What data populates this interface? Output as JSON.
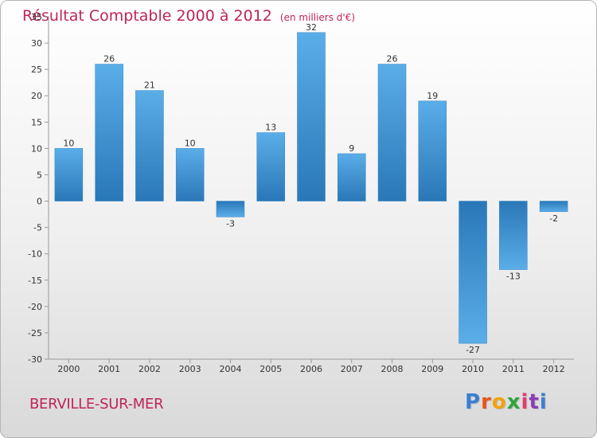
{
  "header": {
    "title": "Résultat Comptable 2000 à 2012",
    "subtitle": "(en milliers d'€)"
  },
  "footer": {
    "commune": "BERVILLE-SUR-MER"
  },
  "logo": {
    "letters": [
      "P",
      "r",
      "o",
      "x",
      "i",
      "t",
      "i"
    ],
    "colors": [
      "#3c7fd1",
      "#e8541b",
      "#f2a20a",
      "#2fa43c",
      "#e23b6e",
      "#8a3fb3",
      "#3c7fd1"
    ]
  },
  "chart_data": {
    "type": "bar",
    "title": "Résultat Comptable 2000 à 2012",
    "ylabel": "(en milliers d'€)",
    "xlabel": "",
    "categories": [
      "2000",
      "2001",
      "2002",
      "2003",
      "2004",
      "2005",
      "2006",
      "2007",
      "2008",
      "2009",
      "2010",
      "2011",
      "2012"
    ],
    "values": [
      10,
      26,
      21,
      10,
      -3,
      13,
      32,
      9,
      26,
      19,
      -27,
      -13,
      -2
    ],
    "labels": [
      "10",
      "26",
      "21",
      "10",
      "-3",
      "13",
      "32",
      "9",
      "26",
      "19",
      "-27",
      "-13",
      "-2"
    ],
    "ylim": [
      -30,
      35
    ],
    "yticks": [
      35,
      30,
      25,
      20,
      15,
      10,
      5,
      0,
      -5,
      -10,
      -15,
      -20,
      -25,
      -30
    ],
    "grid": false,
    "bar_color": "#3a8fd4"
  }
}
